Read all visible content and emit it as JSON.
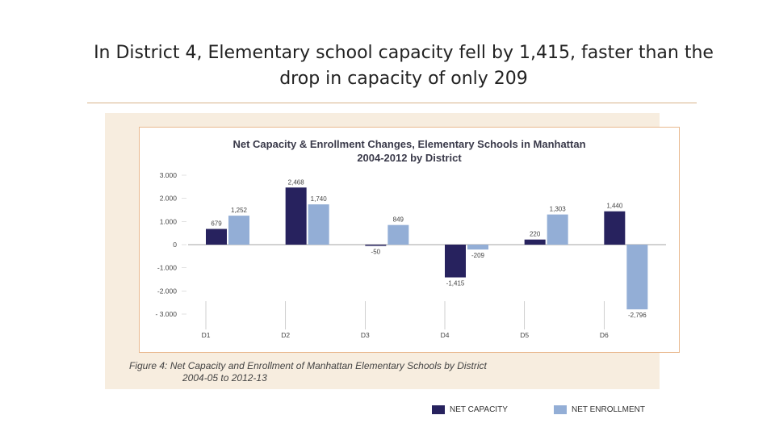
{
  "slide": {
    "title_line1": "In District 4, Elementary school capacity fell by 1,415, faster than the",
    "title_line2": "drop in capacity of only 209"
  },
  "figure": {
    "caption_line1": "Figure 4: Net Capacity and Enrollment of Manhattan Elementary Schools by District",
    "caption_line2": "2004-05 to 2012-13"
  },
  "colors": {
    "net_capacity": "#27225e",
    "net_enrollment": "#93aed6"
  },
  "chart_data": {
    "type": "bar",
    "title": "Net Capacity & Enrollment Changes, Elementary Schools in Manhattan",
    "subtitle": "2004-2012 by District",
    "categories": [
      "D1",
      "D2",
      "D3",
      "D4",
      "D5",
      "D6"
    ],
    "series": [
      {
        "name": "NET CAPACITY",
        "values": [
          679,
          2468,
          -50,
          -1415,
          220,
          1440
        ],
        "labels": [
          "679",
          "2,468",
          "-50",
          "-1,415",
          "220",
          "1,440"
        ]
      },
      {
        "name": "NET ENROLLMENT",
        "values": [
          1252,
          1740,
          849,
          -209,
          1303,
          -2796
        ],
        "labels": [
          "1,252",
          "1,740",
          "849",
          "-209",
          "1,303",
          "-2,796"
        ]
      }
    ],
    "ylim": [
      -3000,
      3000
    ],
    "yticks": [
      3000,
      2000,
      1000,
      0,
      -1000,
      -2000,
      -3000
    ],
    "ytick_labels": [
      "3.000",
      "2.000",
      "1.000",
      "0",
      "-1.000",
      "-2.000",
      "- 3.000"
    ],
    "legend_position": "bottom-right"
  }
}
